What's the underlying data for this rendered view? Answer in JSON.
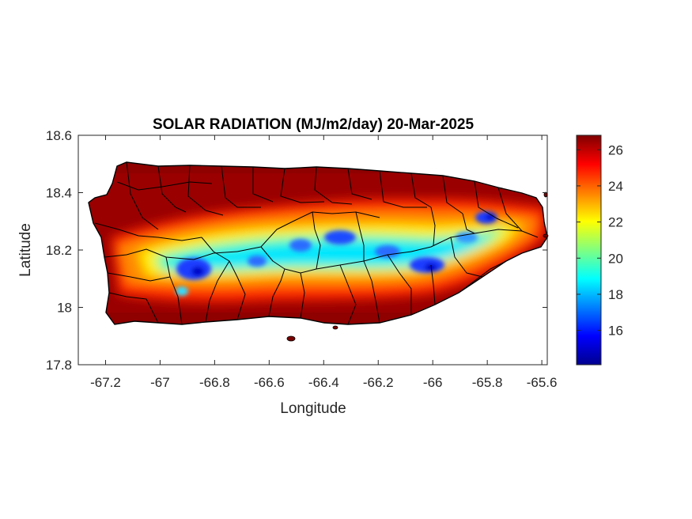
{
  "title": "SOLAR RADIATION (MJ/m2/day) 20-Mar-2025",
  "xlabel": "Longitude",
  "ylabel": "Latitude",
  "x_ticks": [
    "-67.2",
    "-67",
    "-66.8",
    "-66.6",
    "-66.4",
    "-66.2",
    "-66",
    "-65.8",
    "-65.6"
  ],
  "y_ticks": [
    "18.6",
    "18.4",
    "18.2",
    "18",
    "17.8"
  ],
  "colorbar_ticks": [
    "26",
    "24",
    "22",
    "20",
    "18",
    "16"
  ],
  "colormap": "jet",
  "colors": {
    "jet_low": "#00008f",
    "jet_blue": "#0000ff",
    "jet_cyan": "#00ffff",
    "jet_yellow": "#ffff00",
    "jet_red": "#ff0000",
    "jet_high": "#800000",
    "municipality_borders": "#000000"
  },
  "chart_data": {
    "type": "heatmap",
    "title": "SOLAR RADIATION (MJ/m2/day) 20-Mar-2025",
    "xlabel": "Longitude",
    "ylabel": "Latitude",
    "xlim": [
      -67.3,
      -65.58
    ],
    "ylim": [
      17.8,
      18.6
    ],
    "colorbar_range": [
      14.1,
      26.8
    ],
    "colorbar_ticks": [
      26,
      24,
      22,
      20,
      18,
      16
    ],
    "region": "Puerto Rico",
    "low_radiation_band": [
      {
        "lon": -66.88,
        "lat": 18.14,
        "value": 16
      },
      {
        "lon": -66.55,
        "lat": 18.17,
        "value": 18
      },
      {
        "lon": -66.35,
        "lat": 18.25,
        "value": 17
      },
      {
        "lon": -66.05,
        "lat": 18.14,
        "value": 16
      },
      {
        "lon": -65.82,
        "lat": 18.31,
        "value": 16
      }
    ],
    "coastal_value": 26
  }
}
